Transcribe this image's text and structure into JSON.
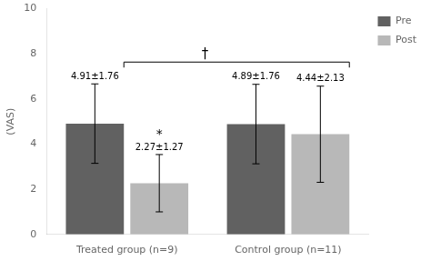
{
  "chart_data": {
    "type": "bar",
    "categories": [
      "Treated group (n=9)",
      "Control group (n=11)"
    ],
    "series": [
      {
        "name": "Pre",
        "color": "#616161",
        "values": [
          4.91,
          4.89
        ],
        "errors": [
          1.76,
          1.76
        ],
        "value_labels": [
          "4.91±1.76",
          "4.89±1.76"
        ]
      },
      {
        "name": "Post",
        "color": "#b8b8b8",
        "values": [
          2.27,
          4.44
        ],
        "errors": [
          1.27,
          2.13
        ],
        "value_labels": [
          "2.27±1.27",
          "4.44±2.13"
        ]
      }
    ],
    "ylabel": "(VAS)",
    "ylim": [
      0,
      10
    ],
    "yticks": [
      0,
      2,
      4,
      6,
      8,
      10
    ],
    "grid": false,
    "legend": "upper right",
    "data_labels": true,
    "annotations": [
      {
        "text": "*",
        "category": "Treated group (n=9)",
        "series": "Post"
      },
      {
        "text": "†",
        "bracket": [
          {
            "category": "Treated group (n=9)",
            "series": "Pre"
          },
          {
            "category": "Control group (n=11)",
            "series": "Post"
          }
        ]
      }
    ]
  }
}
